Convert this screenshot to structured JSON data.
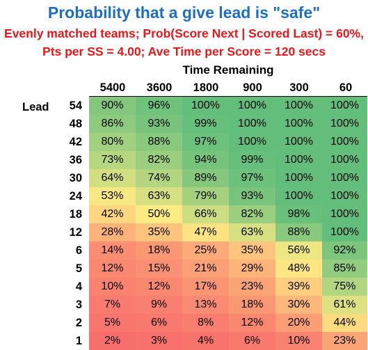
{
  "title": "Probability that a give lead is \"safe\"",
  "subtitle_line1": "Evenly matched teams; Prob(Score Next | Scored Last) = 60%,",
  "subtitle_line2": "Pts per SS = 4.00; Ave Time per Score = 120 secs",
  "chart_data": {
    "type": "heatmap",
    "title": "Probability that a give lead is \"safe\"",
    "xlabel": "Time Remaining",
    "ylabel": "Lead",
    "columns": [
      "5400",
      "3600",
      "1800",
      "900",
      "300",
      "60"
    ],
    "rows": [
      "54",
      "48",
      "42",
      "36",
      "30",
      "24",
      "18",
      "12",
      "6",
      "5",
      "4",
      "3",
      "2",
      "1"
    ],
    "values": [
      [
        90,
        96,
        100,
        100,
        100,
        100
      ],
      [
        86,
        93,
        99,
        100,
        100,
        100
      ],
      [
        80,
        88,
        97,
        100,
        100,
        100
      ],
      [
        73,
        82,
        94,
        99,
        100,
        100
      ],
      [
        64,
        74,
        89,
        97,
        100,
        100
      ],
      [
        53,
        63,
        79,
        93,
        100,
        100
      ],
      [
        42,
        50,
        66,
        82,
        98,
        100
      ],
      [
        28,
        35,
        47,
        63,
        88,
        100
      ],
      [
        14,
        18,
        25,
        35,
        56,
        92
      ],
      [
        12,
        15,
        21,
        29,
        48,
        85
      ],
      [
        10,
        12,
        17,
        23,
        39,
        75
      ],
      [
        7,
        9,
        13,
        18,
        30,
        61
      ],
      [
        5,
        6,
        8,
        12,
        20,
        44
      ],
      [
        2,
        3,
        4,
        6,
        10,
        23
      ]
    ],
    "value_suffix": "%",
    "color_scale": {
      "low": "#f8696b",
      "mid": "#ffeb84",
      "high": "#63be7b"
    }
  }
}
